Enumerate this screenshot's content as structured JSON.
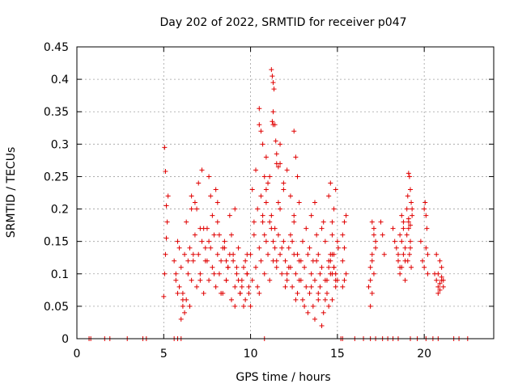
{
  "chart_data": {
    "type": "scatter",
    "title": "Day 202 of 2022, SRMTID for receiver p047",
    "xlabel": "GPS time / hours",
    "ylabel": "SRMTID / TECUs",
    "xlim": [
      0,
      24
    ],
    "ylim": [
      0,
      0.45
    ],
    "xticks": [
      0,
      5,
      10,
      15,
      20
    ],
    "xtick_labels": [
      "0",
      "5",
      "10",
      "15",
      "20"
    ],
    "yticks": [
      0,
      0.05,
      0.1,
      0.15,
      0.2,
      0.25,
      0.3,
      0.35,
      0.4,
      0.45
    ],
    "ytick_labels": [
      "0",
      "0.05",
      "0.1",
      "0.15",
      "0.2",
      "0.25",
      "0.3",
      "0.35",
      "0.4",
      "0.45"
    ],
    "grid": true,
    "marker": "+",
    "color": "#e00000",
    "series": [
      {
        "name": "SRMTID",
        "x": [
          0.7,
          0.8,
          1.6,
          1.9,
          2.9,
          3.8,
          4.0,
          5.6,
          5.8,
          6.0,
          10.8,
          15.2,
          15.3,
          16.0,
          16.5,
          16.9,
          17.2,
          17.6,
          17.9,
          18.2,
          18.5,
          19.2,
          19.6,
          20.1,
          20.5,
          20.8,
          21.7,
          22.0,
          22.5,
          5.0,
          5.05,
          5.1,
          5.15,
          5.2,
          5.25,
          5.05,
          5.1,
          5.15,
          5.6,
          5.7,
          5.8,
          5.9,
          6.0,
          6.1,
          6.2,
          6.3,
          6.4,
          6.5,
          6.6,
          6.7,
          6.8,
          6.9,
          7.0,
          7.1,
          7.2,
          7.3,
          7.4,
          7.5,
          7.6,
          7.7,
          7.8,
          7.9,
          8.0,
          8.1,
          8.2,
          8.3,
          8.4,
          8.5,
          8.6,
          8.7,
          8.8,
          8.9,
          9.0,
          9.1,
          9.2,
          9.3,
          9.4,
          9.5,
          9.6,
          9.7,
          9.8,
          9.9,
          5.7,
          5.9,
          6.1,
          6.3,
          6.5,
          6.7,
          6.9,
          7.1,
          7.3,
          7.5,
          7.7,
          7.9,
          8.1,
          8.3,
          8.5,
          8.7,
          8.9,
          9.1,
          9.3,
          9.5,
          9.7,
          5.8,
          6.2,
          6.6,
          7.0,
          7.4,
          7.8,
          8.2,
          8.6,
          9.0,
          9.4,
          9.8,
          6.0,
          6.4,
          6.8,
          7.2,
          7.6,
          8.0,
          8.4,
          8.8,
          9.2,
          9.6,
          6.1,
          6.6,
          7.1,
          7.6,
          8.1,
          8.6,
          9.1,
          9.8,
          9.9,
          10.0,
          10.1,
          10.2,
          10.3,
          10.4,
          10.5,
          10.6,
          10.7,
          10.8,
          10.9,
          11.0,
          11.1,
          11.2,
          11.3,
          11.4,
          11.5,
          11.6,
          11.7,
          11.8,
          11.9,
          12.0,
          12.1,
          12.2,
          12.3,
          12.4,
          12.5,
          12.6,
          12.7,
          12.8,
          12.9,
          10.0,
          10.2,
          10.4,
          10.6,
          10.8,
          11.0,
          11.2,
          11.4,
          11.6,
          11.8,
          12.0,
          12.2,
          12.4,
          12.6,
          10.1,
          10.3,
          10.5,
          10.7,
          10.9,
          11.1,
          11.3,
          11.5,
          11.7,
          11.9,
          12.1,
          12.3,
          12.5,
          12.7,
          10.5,
          10.7,
          10.9,
          11.1,
          11.3,
          11.5,
          11.7,
          11.9,
          12.1,
          12.3,
          12.5,
          11.2,
          11.25,
          11.3,
          11.35,
          11.3,
          11.25,
          11.4,
          11.45,
          11.5,
          11.6,
          11.7,
          10.5,
          10.6,
          10.8,
          10.9,
          12.5,
          12.6,
          12.7,
          12.8,
          12.8,
          12.9,
          13.0,
          13.1,
          13.2,
          13.3,
          13.4,
          13.5,
          13.6,
          13.7,
          13.8,
          13.9,
          14.0,
          14.1,
          14.2,
          14.3,
          14.4,
          14.5,
          14.6,
          14.7,
          14.8,
          14.9,
          13.0,
          13.2,
          13.4,
          13.6,
          13.8,
          14.0,
          14.2,
          14.4,
          14.6,
          14.8,
          13.1,
          13.3,
          13.5,
          13.7,
          13.9,
          14.1,
          14.3,
          14.5,
          14.7,
          14.9,
          13.5,
          13.7,
          13.9,
          14.1,
          14.3,
          14.5,
          14.7,
          14.5,
          14.6,
          14.7,
          14.8,
          14.9,
          15.0,
          15.05,
          14.6,
          14.7,
          14.8,
          14.9,
          15.0,
          15.3,
          15.4,
          15.5,
          15.3,
          15.4,
          15.5,
          15.3,
          15.4,
          16.8,
          16.9,
          17.0,
          17.1,
          17.2,
          16.9,
          17.0,
          17.1,
          17.0,
          17.1,
          16.9,
          17.0,
          17.2,
          17.5,
          17.6,
          17.7,
          18.2,
          18.3,
          18.4,
          18.5,
          18.6,
          18.7,
          18.8,
          18.9,
          18.6,
          18.7,
          18.8,
          18.9,
          18.7,
          18.8,
          18.9,
          18.5,
          18.6,
          19.0,
          19.05,
          19.1,
          19.15,
          19.2,
          19.25,
          19.3,
          19.0,
          19.1,
          19.2,
          19.3,
          19.1,
          19.2,
          19.05,
          19.15,
          19.25,
          19.1,
          19.2,
          19.8,
          19.9,
          20.0,
          20.05,
          20.1,
          20.15,
          20.2,
          20.0,
          20.1,
          20.2,
          20.6,
          20.7,
          20.8,
          20.9,
          21.0,
          21.1,
          20.7,
          20.8,
          20.9,
          21.0,
          21.1,
          20.8,
          20.9,
          21.0
        ],
        "y": [
          0,
          0,
          0,
          0,
          0,
          0,
          0,
          0,
          0,
          0,
          0,
          0,
          0,
          0,
          0,
          0,
          0,
          0,
          0,
          0,
          0,
          0,
          0,
          0,
          0,
          0,
          0,
          0,
          0,
          0.065,
          0.1,
          0.13,
          0.155,
          0.18,
          0.22,
          0.295,
          0.258,
          0.205,
          0.12,
          0.09,
          0.15,
          0.08,
          0.11,
          0.07,
          0.13,
          0.06,
          0.1,
          0.14,
          0.09,
          0.12,
          0.16,
          0.08,
          0.13,
          0.1,
          0.15,
          0.07,
          0.12,
          0.17,
          0.09,
          0.14,
          0.11,
          0.16,
          0.08,
          0.13,
          0.1,
          0.12,
          0.07,
          0.15,
          0.09,
          0.11,
          0.13,
          0.06,
          0.12,
          0.08,
          0.1,
          0.14,
          0.07,
          0.09,
          0.11,
          0.06,
          0.13,
          0.08,
          0.1,
          0.14,
          0.06,
          0.18,
          0.05,
          0.13,
          0.2,
          0.09,
          0.17,
          0.12,
          0.22,
          0.1,
          0.18,
          0.07,
          0.14,
          0.11,
          0.16,
          0.05,
          0.09,
          0.08,
          0.12,
          0.07,
          0.04,
          0.2,
          0.24,
          0.14,
          0.19,
          0.16,
          0.09,
          0.13,
          0.07,
          0.1,
          0.03,
          0.12,
          0.21,
          0.26,
          0.15,
          0.23,
          0.14,
          0.19,
          0.11,
          0.05,
          0.05,
          0.22,
          0.17,
          0.25,
          0.21,
          0.12,
          0.2,
          0.1,
          0.07,
          0.13,
          0.09,
          0.16,
          0.11,
          0.08,
          0.14,
          0.12,
          0.18,
          0.1,
          0.15,
          0.13,
          0.09,
          0.17,
          0.12,
          0.14,
          0.11,
          0.16,
          0.13,
          0.1,
          0.15,
          0.12,
          0.09,
          0.14,
          0.11,
          0.08,
          0.13,
          0.1,
          0.07,
          0.12,
          0.09,
          0.05,
          0.18,
          0.2,
          0.22,
          0.16,
          0.24,
          0.19,
          0.17,
          0.21,
          0.14,
          0.08,
          0.11,
          0.15,
          0.06,
          0.23,
          0.26,
          0.07,
          0.19,
          0.21,
          0.18,
          0.15,
          0.12,
          0.2,
          0.23,
          0.1,
          0.16,
          0.18,
          0.13,
          0.355,
          0.3,
          0.28,
          0.25,
          0.33,
          0.27,
          0.3,
          0.24,
          0.26,
          0.22,
          0.19,
          0.415,
          0.405,
          0.395,
          0.385,
          0.35,
          0.335,
          0.33,
          0.305,
          0.285,
          0.265,
          0.27,
          0.33,
          0.32,
          0.25,
          0.23,
          0.32,
          0.28,
          0.25,
          0.21,
          0.09,
          0.12,
          0.06,
          0.11,
          0.08,
          0.13,
          0.07,
          0.1,
          0.05,
          0.09,
          0.12,
          0.06,
          0.08,
          0.11,
          0.04,
          0.09,
          0.07,
          0.12,
          0.1,
          0.06,
          0.13,
          0.09,
          0.15,
          0.17,
          0.14,
          0.12,
          0.16,
          0.1,
          0.18,
          0.09,
          0.13,
          0.11,
          0.05,
          0.04,
          0.08,
          0.03,
          0.07,
          0.02,
          0.06,
          0.05,
          0.1,
          0.08,
          0.19,
          0.21,
          0.13,
          0.17,
          0.15,
          0.11,
          0.16,
          0.22,
          0.24,
          0.18,
          0.2,
          0.23,
          0.15,
          0.14,
          0.12,
          0.13,
          0.11,
          0.1,
          0.09,
          0.08,
          0.18,
          0.19,
          0.12,
          0.14,
          0.1,
          0.16,
          0.09,
          0.08,
          0.11,
          0.13,
          0.16,
          0.14,
          0.05,
          0.07,
          0.1,
          0.12,
          0.17,
          0.09,
          0.18,
          0.15,
          0.18,
          0.16,
          0.13,
          0.17,
          0.15,
          0.14,
          0.12,
          0.1,
          0.11,
          0.13,
          0.09,
          0.16,
          0.19,
          0.18,
          0.14,
          0.15,
          0.17,
          0.12,
          0.13,
          0.11,
          0.2,
          0.22,
          0.255,
          0.25,
          0.23,
          0.21,
          0.19,
          0.16,
          0.18,
          0.15,
          0.2,
          0.17,
          0.14,
          0.12,
          0.13,
          0.11,
          0.185,
          0.175,
          0.15,
          0.12,
          0.2,
          0.21,
          0.19,
          0.17,
          0.13,
          0.11,
          0.14,
          0.1,
          0.1,
          0.09,
          0.08,
          0.12,
          0.11,
          0.09,
          0.13,
          0.1,
          0.085,
          0.095,
          0.08,
          0.07,
          0.075,
          0.09
        ]
      }
    ]
  }
}
